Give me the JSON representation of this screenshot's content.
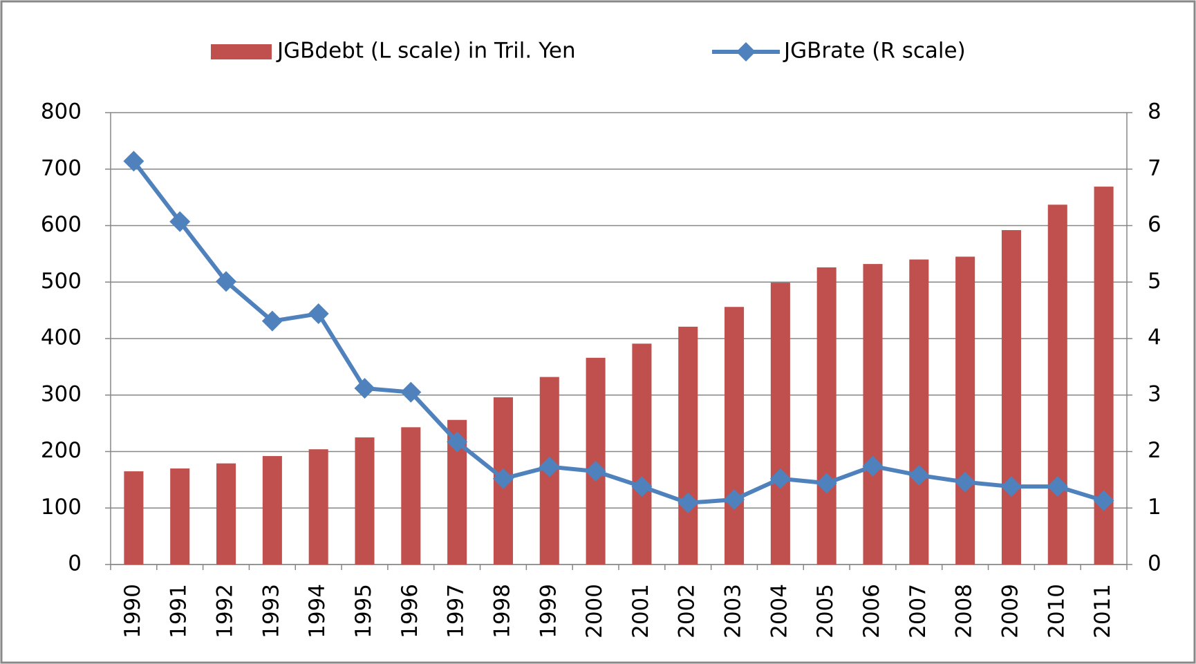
{
  "chart_data": {
    "type": "bar-line",
    "categories": [
      "1990",
      "1991",
      "1992",
      "1993",
      "1994",
      "1995",
      "1996",
      "1997",
      "1998",
      "1999",
      "2000",
      "2001",
      "2002",
      "2003",
      "2004",
      "2005",
      "2006",
      "2007",
      "2008",
      "2009",
      "2010",
      "2011"
    ],
    "series": [
      {
        "name": "JGBdebt (L scale) in Tril. Yen",
        "type": "bar",
        "color": "#c0504d",
        "values": [
          165,
          170,
          179,
          192,
          204,
          225,
          243,
          256,
          296,
          332,
          366,
          391,
          421,
          456,
          499,
          526,
          532,
          540,
          545,
          592,
          637,
          669
        ]
      },
      {
        "name": "JGBrate (R scale)",
        "type": "line",
        "axis": "y2",
        "color": "#4f81bd",
        "values": [
          7.14,
          6.07,
          5.01,
          4.31,
          4.44,
          3.12,
          3.05,
          2.17,
          1.52,
          1.73,
          1.65,
          1.38,
          1.09,
          1.15,
          1.52,
          1.44,
          1.74,
          1.58,
          1.46,
          1.38,
          1.38,
          1.13
        ]
      }
    ],
    "ylim": [
      0,
      800
    ],
    "yticks": [
      0,
      100,
      200,
      300,
      400,
      500,
      600,
      700,
      800
    ],
    "y2lim": [
      0,
      8
    ],
    "y2ticks": [
      0,
      1,
      2,
      3,
      4,
      5,
      6,
      7,
      8
    ],
    "grid": true,
    "legend": "top"
  }
}
